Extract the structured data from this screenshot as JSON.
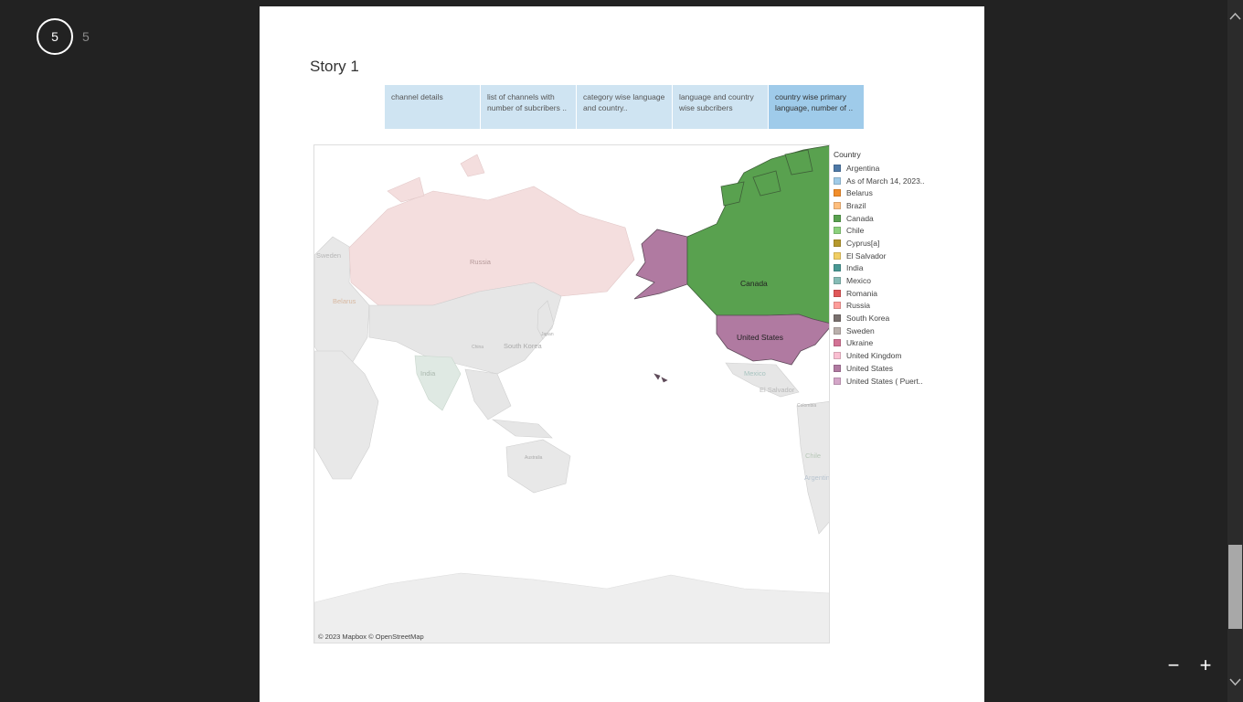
{
  "pager": {
    "current": "5",
    "total": "5"
  },
  "story": {
    "title": "Story 1",
    "tabs": [
      {
        "label": "channel details"
      },
      {
        "label": "list of channels with number of subcribers .."
      },
      {
        "label": "category wise language and country.."
      },
      {
        "label": "language and country wise subcribers"
      },
      {
        "label": "country wise primary language, number of .."
      }
    ],
    "active_tab": 4
  },
  "map": {
    "credit": "© 2023 Mapbox © OpenStreetMap",
    "labels": {
      "canada": "Canada",
      "united_states": "United States",
      "russia": "Russia",
      "south_korea": "South Korea",
      "india": "India",
      "belarus": "Belarus",
      "sweden": "Sweden",
      "china": "China",
      "mexico": "Mexico",
      "el_salvador": "El Salvador",
      "australia": "Australia",
      "chile": "Chile",
      "argentina": "Argentina",
      "japan": "Japan",
      "colombia": "Colombia"
    },
    "colors": {
      "canada": "#59a14f",
      "united_states": "#b07aa1",
      "land_muted": "#e6e6e6",
      "russia_muted": "#f4dede"
    }
  },
  "legend": {
    "title": "Country",
    "items": [
      {
        "label": "Argentina",
        "color": "#4e79a7"
      },
      {
        "label": "As of March 14, 2023..",
        "color": "#a0cbe8"
      },
      {
        "label": "Belarus",
        "color": "#f28e2b"
      },
      {
        "label": "Brazil",
        "color": "#ffbe7d"
      },
      {
        "label": "Canada",
        "color": "#59a14f"
      },
      {
        "label": "Chile",
        "color": "#8cd17d"
      },
      {
        "label": "Cyprus[a]",
        "color": "#b6992d"
      },
      {
        "label": "El Salvador",
        "color": "#f1ce63"
      },
      {
        "label": "India",
        "color": "#499894"
      },
      {
        "label": "Mexico",
        "color": "#86bcb6"
      },
      {
        "label": "Romania",
        "color": "#e15759"
      },
      {
        "label": "Russia",
        "color": "#ff9d9a"
      },
      {
        "label": "South Korea",
        "color": "#79706e"
      },
      {
        "label": "Sweden",
        "color": "#bab0ac"
      },
      {
        "label": "Ukraine",
        "color": "#d37295"
      },
      {
        "label": "United Kingdom",
        "color": "#fabfd2"
      },
      {
        "label": "United States",
        "color": "#b07aa1"
      },
      {
        "label": "United States ( Puert..",
        "color": "#d4a6c8"
      }
    ]
  },
  "controls": {
    "zoom_out": "−",
    "zoom_in": "+"
  }
}
